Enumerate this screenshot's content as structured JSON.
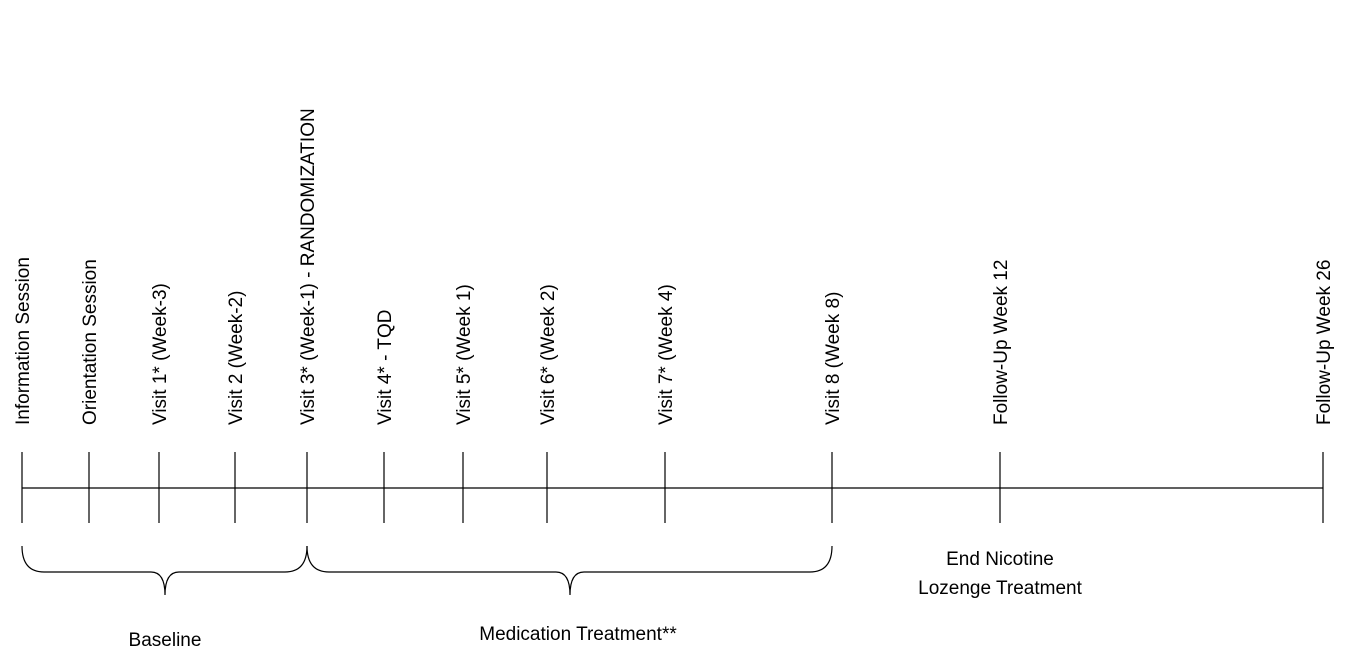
{
  "events": [
    "Information Session",
    "Orientation Session",
    "Visit 1* (Week-3)",
    "Visit 2 (Week-2)",
    "Visit 3* (Week-1) - RANDOMIZATION",
    "Visit 4* - TQD",
    "Visit 5* (Week 1)",
    "Visit 6* (Week 2)",
    "Visit 7* (Week 4)",
    "Visit 8 (Week 8)",
    "Follow-Up Week 12",
    "Follow-Up Week 26"
  ],
  "phases": [
    {
      "label": "Baseline"
    },
    {
      "label": "Medication Treatment**"
    }
  ],
  "annotation": {
    "lines": [
      "End Nicotine",
      "Lozenge Treatment"
    ]
  }
}
